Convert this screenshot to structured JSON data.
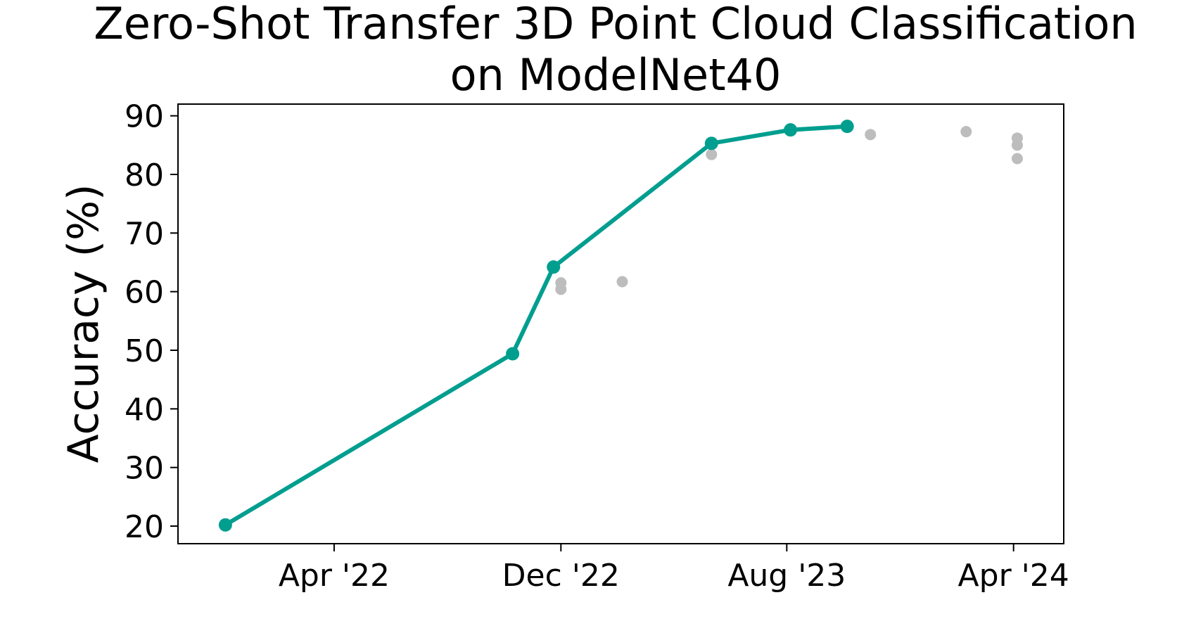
{
  "chart_data": {
    "type": "line",
    "title_lines": [
      "Zero-Shot Transfer 3D Point Cloud Classification",
      "on ModelNet40"
    ],
    "xlabel": "",
    "ylabel": "Accuracy (%)",
    "x_ticks": [
      {
        "label": "Apr '22",
        "date": "2022-04-01"
      },
      {
        "label": "Dec '22",
        "date": "2022-12-01"
      },
      {
        "label": "Aug '23",
        "date": "2023-08-01"
      },
      {
        "label": "Apr '24",
        "date": "2024-04-01"
      }
    ],
    "xlim": [
      "2021-10-15",
      "2024-05-25"
    ],
    "y_ticks": [
      20,
      30,
      40,
      50,
      60,
      70,
      80,
      90
    ],
    "ylim": [
      17,
      92
    ],
    "grid": false,
    "colors": {
      "sota_line": "#009e8f",
      "other_points": "#bdbdbd"
    },
    "series": [
      {
        "kind": "sota",
        "points": [
          {
            "date": "2021-12-05",
            "y": 20.2
          },
          {
            "date": "2022-10-10",
            "y": 49.4
          },
          {
            "date": "2022-11-23",
            "y": 64.2
          },
          {
            "date": "2023-05-12",
            "y": 85.3
          },
          {
            "date": "2023-08-05",
            "y": 87.6
          },
          {
            "date": "2023-10-05",
            "y": 88.2
          }
        ]
      },
      {
        "kind": "other",
        "points": [
          {
            "date": "2022-12-01",
            "y": 61.5
          },
          {
            "date": "2022-12-01",
            "y": 60.4
          },
          {
            "date": "2023-02-05",
            "y": 61.7
          },
          {
            "date": "2023-05-12",
            "y": 83.4
          },
          {
            "date": "2023-10-30",
            "y": 86.8
          },
          {
            "date": "2024-02-10",
            "y": 87.3
          },
          {
            "date": "2024-04-05",
            "y": 86.2
          },
          {
            "date": "2024-04-05",
            "y": 85.0
          },
          {
            "date": "2024-04-05",
            "y": 82.7
          }
        ]
      }
    ]
  }
}
